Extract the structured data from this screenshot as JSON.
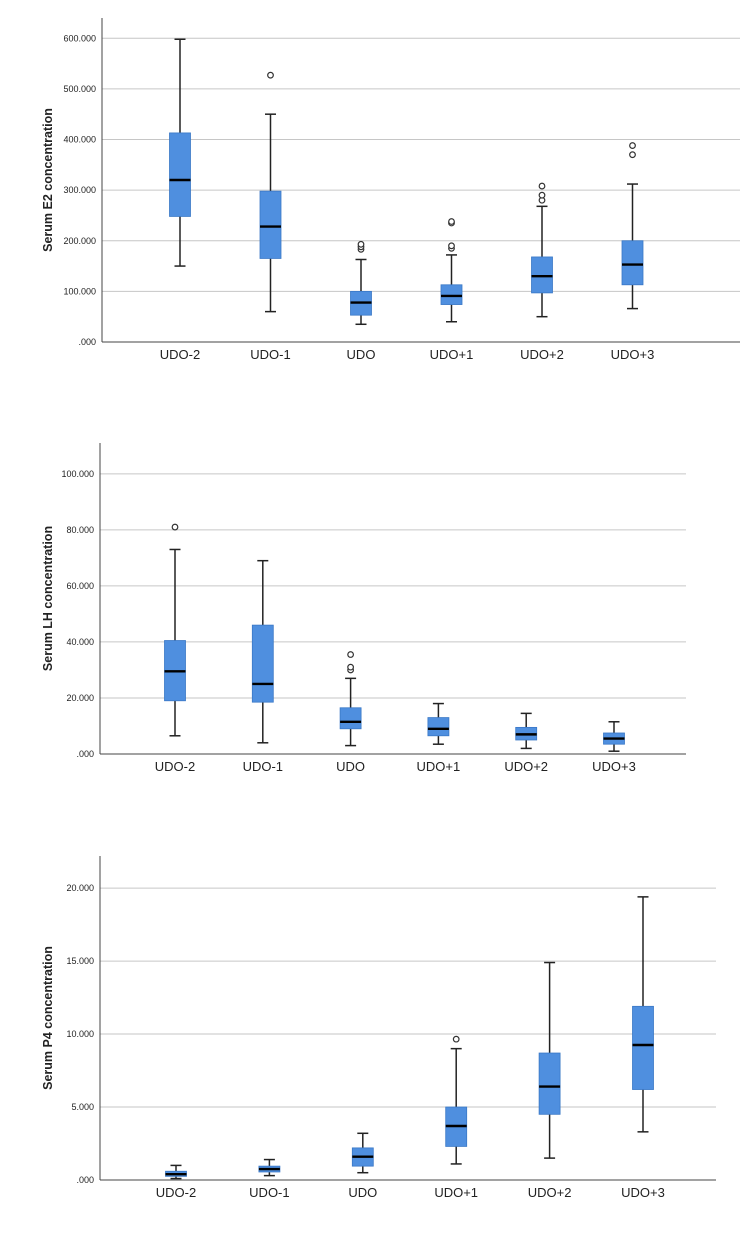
{
  "chart_data": [
    {
      "type": "boxplot",
      "ylabel": "Serum E2 concentration",
      "xlabel": "",
      "categories": [
        "UDO-2",
        "UDO-1",
        "UDO",
        "UDO+1",
        "UDO+2",
        "UDO+3"
      ],
      "ylim": [
        0,
        640
      ],
      "yticks": [
        0,
        100,
        200,
        300,
        400,
        500,
        600
      ],
      "ytick_labels": [
        ".000",
        "100.000",
        "200.000",
        "300.000",
        "400.000",
        "500.000",
        "600.000"
      ],
      "grid": true,
      "boxes": [
        {
          "min": 150,
          "q1": 248,
          "median": 320,
          "q3": 413,
          "max": 598,
          "outliers": []
        },
        {
          "min": 60,
          "q1": 165,
          "median": 228,
          "q3": 298,
          "max": 450,
          "outliers": [
            527
          ]
        },
        {
          "min": 35,
          "q1": 53,
          "median": 78,
          "q3": 100,
          "max": 163,
          "outliers": [
            183,
            188,
            193
          ]
        },
        {
          "min": 40,
          "q1": 74,
          "median": 91,
          "q3": 113,
          "max": 172,
          "outliers": [
            185,
            190,
            235,
            238
          ]
        },
        {
          "min": 50,
          "q1": 97,
          "median": 130,
          "q3": 168,
          "max": 268,
          "outliers": [
            280,
            290,
            308
          ]
        },
        {
          "min": 66,
          "q1": 113,
          "median": 153,
          "q3": 200,
          "max": 312,
          "outliers": [
            370,
            388
          ]
        }
      ]
    },
    {
      "type": "boxplot",
      "ylabel": "Serum LH concentration",
      "xlabel": "",
      "categories": [
        "UDO-2",
        "UDO-1",
        "UDO",
        "UDO+1",
        "UDO+2",
        "UDO+3"
      ],
      "ylim": [
        0,
        111
      ],
      "yticks": [
        0,
        20,
        40,
        60,
        80,
        100
      ],
      "ytick_labels": [
        ".000",
        "20.000",
        "40.000",
        "60.000",
        "80.000",
        "100.000"
      ],
      "grid": true,
      "boxes": [
        {
          "min": 6.5,
          "q1": 19,
          "median": 29.5,
          "q3": 40.5,
          "max": 73,
          "outliers": [
            81
          ]
        },
        {
          "min": 4,
          "q1": 18.5,
          "median": 25,
          "q3": 46,
          "max": 69,
          "outliers": []
        },
        {
          "min": 3,
          "q1": 9,
          "median": 11.5,
          "q3": 16.5,
          "max": 27,
          "outliers": [
            30,
            31,
            35.5
          ]
        },
        {
          "min": 3.5,
          "q1": 6.5,
          "median": 9,
          "q3": 13,
          "max": 18,
          "outliers": []
        },
        {
          "min": 2,
          "q1": 5,
          "median": 7,
          "q3": 9.5,
          "max": 14.5,
          "outliers": []
        },
        {
          "min": 1,
          "q1": 3.5,
          "median": 5.5,
          "q3": 7.5,
          "max": 11.5,
          "outliers": []
        }
      ]
    },
    {
      "type": "boxplot",
      "ylabel": "Serum P4 concentration",
      "xlabel": "",
      "categories": [
        "UDO-2",
        "UDO-1",
        "UDO",
        "UDO+1",
        "UDO+2",
        "UDO+3"
      ],
      "ylim": [
        0,
        22.2
      ],
      "yticks": [
        0,
        5,
        10,
        15,
        20
      ],
      "ytick_labels": [
        ".000",
        "5.000",
        "10.000",
        "15.000",
        "20.000"
      ],
      "grid": true,
      "boxes": [
        {
          "min": 0.1,
          "q1": 0.25,
          "median": 0.4,
          "q3": 0.6,
          "max": 1.0,
          "outliers": []
        },
        {
          "min": 0.3,
          "q1": 0.55,
          "median": 0.75,
          "q3": 0.95,
          "max": 1.4,
          "outliers": []
        },
        {
          "min": 0.5,
          "q1": 0.95,
          "median": 1.6,
          "q3": 2.2,
          "max": 3.2,
          "outliers": []
        },
        {
          "min": 1.1,
          "q1": 2.3,
          "median": 3.7,
          "q3": 5.0,
          "max": 9.0,
          "outliers": [
            9.65
          ]
        },
        {
          "min": 1.5,
          "q1": 4.5,
          "median": 6.4,
          "q3": 8.7,
          "max": 14.9,
          "outliers": []
        },
        {
          "min": 3.3,
          "q1": 6.2,
          "median": 9.25,
          "q3": 11.9,
          "max": 19.4,
          "outliers": []
        }
      ]
    }
  ],
  "colors": {
    "box_fill": "#4f8fdf",
    "box_edge": "#3a78c6",
    "grid": "#c6c6c6",
    "axis": "#444444",
    "text": "#222222"
  }
}
